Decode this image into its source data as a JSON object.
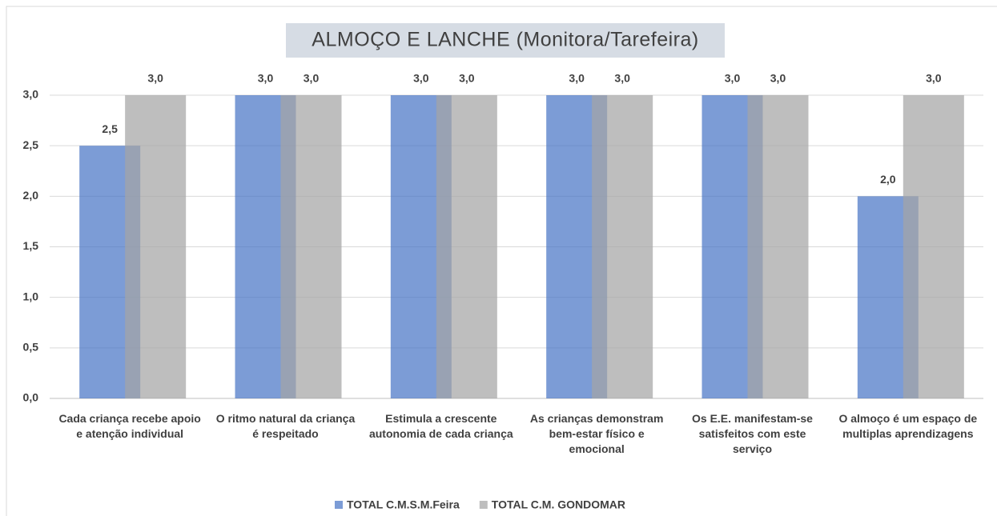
{
  "chart_data": {
    "type": "bar",
    "title": "ALMOÇO E LANCHE (Monitora/Tarefeira)",
    "categories": [
      "Cada criança recebe apoio e atenção individual",
      "O ritmo natural da criança é respeitado",
      "Estimula a crescente autonomia de cada criança",
      "As crianças demonstram bem-estar físico e emocional",
      "Os E.E. manifestam-se satisfeitos com este serviço",
      "O almoço é um espaço de multiplas aprendizagens"
    ],
    "series": [
      {
        "name": "TOTAL C.M.S.M.Feira",
        "color": "#4472c4",
        "values": [
          2.5,
          3,
          3,
          3,
          3,
          2
        ],
        "value_labels": [
          "2,5",
          "3,0",
          "3,0",
          "3,0",
          "3,0",
          "2,0"
        ]
      },
      {
        "name": "TOTAL C.M. GONDOMAR",
        "color": "#a5a5a5",
        "values": [
          3,
          3,
          3,
          3,
          3,
          3
        ],
        "value_labels": [
          "3,0",
          "3,0",
          "3,0",
          "3,0",
          "3,0",
          "3,0"
        ]
      }
    ],
    "ylim": [
      0,
      3
    ],
    "yticks": [
      {
        "value": 0,
        "label": "0,0"
      },
      {
        "value": 0.5,
        "label": "0,5"
      },
      {
        "value": 1,
        "label": "1,0"
      },
      {
        "value": 1.5,
        "label": "1,5"
      },
      {
        "value": 2,
        "label": "2,0"
      },
      {
        "value": 2.5,
        "label": "2,5"
      },
      {
        "value": 3,
        "label": "3,0"
      }
    ],
    "grid": true,
    "legend": "bottom"
  }
}
